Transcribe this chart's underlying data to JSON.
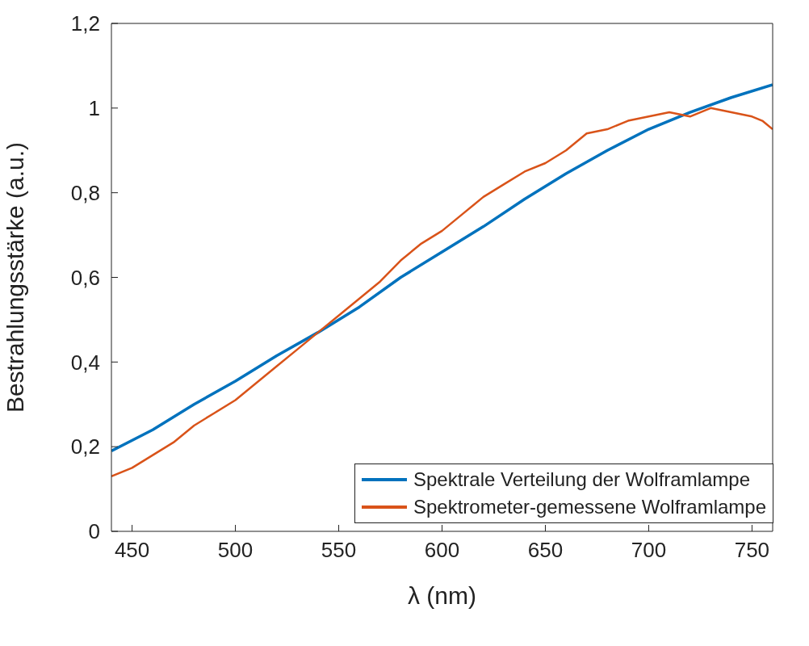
{
  "chart_data": {
    "type": "line",
    "xlabel": "λ (nm)",
    "ylabel": "Bestrahlungsstärke (a.u.)",
    "xlim": [
      440,
      760
    ],
    "xticks": [
      450,
      500,
      550,
      600,
      650,
      700,
      750
    ],
    "ylim": [
      0,
      1.2
    ],
    "yticks": [
      0,
      {
        "value": 0.2,
        "label": "0,2"
      },
      {
        "value": 0.4,
        "label": "0,4"
      },
      {
        "value": 0.6,
        "label": "0,6"
      },
      {
        "value": 0.8,
        "label": "0,8"
      },
      1,
      {
        "value": 1.2,
        "label": "1,2"
      }
    ],
    "grid": false,
    "legend": "bottom right",
    "marker": "none",
    "line_style": "solid",
    "series": [
      {
        "name": "Spektrale Verteilung der Wolframlampe",
        "color": "#0072bd",
        "x": [
          440,
          460,
          480,
          500,
          520,
          540,
          560,
          580,
          600,
          620,
          640,
          660,
          680,
          700,
          720,
          740,
          760
        ],
        "values": [
          0.19,
          0.24,
          0.3,
          0.355,
          0.415,
          0.47,
          0.53,
          0.6,
          0.66,
          0.72,
          0.785,
          0.845,
          0.9,
          0.95,
          0.99,
          1.025,
          1.055
        ]
      },
      {
        "name": "Spektrometer-gemessene Wolframlampe",
        "color": "#d95319",
        "x": [
          440,
          450,
          460,
          470,
          480,
          490,
          500,
          510,
          520,
          530,
          540,
          550,
          560,
          570,
          580,
          590,
          600,
          610,
          620,
          630,
          640,
          650,
          660,
          670,
          680,
          690,
          700,
          710,
          720,
          730,
          740,
          750,
          755,
          760
        ],
        "values": [
          0.13,
          0.15,
          0.18,
          0.21,
          0.25,
          0.28,
          0.31,
          0.35,
          0.39,
          0.43,
          0.47,
          0.51,
          0.55,
          0.59,
          0.64,
          0.68,
          0.71,
          0.75,
          0.79,
          0.82,
          0.85,
          0.87,
          0.9,
          0.94,
          0.95,
          0.97,
          0.98,
          0.99,
          0.98,
          1.0,
          0.99,
          0.98,
          0.97,
          0.95
        ]
      }
    ]
  }
}
